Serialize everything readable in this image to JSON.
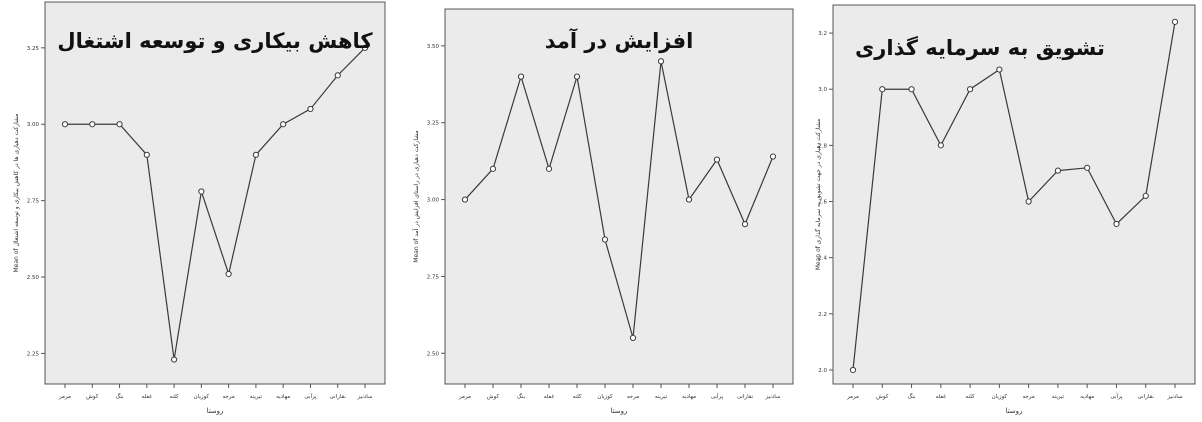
{
  "chart_data": [
    {
      "type": "line",
      "title": "کاهش بیکاری و توسعه اشتغال",
      "xlabel": "روستا",
      "ylabel": "Mean of مشارکت دهیاری ها در کاهش بیکاری و توسعه اشتغال",
      "categories": [
        "مرمر",
        "کوش",
        "بنگ",
        "غفله",
        "کلنه",
        "کوزیان",
        "مرخه",
        "تیرینه",
        "مهادیه",
        "پرآبی",
        "نقارانی",
        "سادنیز"
      ],
      "yticks": [
        "2.25",
        "2.50",
        "2.75",
        "3.00",
        "3.25"
      ],
      "ylim": [
        2.15,
        3.4
      ],
      "values": [
        3.0,
        3.0,
        3.0,
        2.9,
        2.23,
        2.78,
        2.51,
        2.9,
        3.0,
        3.05,
        3.16,
        3.25
      ]
    },
    {
      "type": "line",
      "title": "افزایش در آمد",
      "xlabel": "روستا",
      "ylabel": "Mean of مشارکت دهیاری در راستای افزایش در آمد",
      "categories": [
        "مرمر",
        "کوش",
        "بنگ",
        "غفله",
        "کلنه",
        "کوزیان",
        "مرخه",
        "تیرینه",
        "مهادیه",
        "پرآبی",
        "نقارانی",
        "سادنیز"
      ],
      "yticks": [
        "2.50",
        "2.75",
        "3.00",
        "3.25",
        "3.50"
      ],
      "ylim": [
        2.4,
        3.62
      ],
      "values": [
        3.0,
        3.1,
        3.4,
        3.1,
        3.4,
        2.87,
        2.55,
        3.45,
        3.0,
        3.13,
        2.92,
        3.14
      ]
    },
    {
      "type": "line",
      "title": "تشویق به سرمایه گذاری",
      "xlabel": "روستا",
      "ylabel": "Mean of مشارکت دهیاری در جهت تشویق به سرمایه گذاری",
      "categories": [
        "مرمر",
        "کوش",
        "بنگ",
        "غفله",
        "کلنه",
        "کوزیان",
        "مرخه",
        "تیرینه",
        "مهادیه",
        "پرآبی",
        "نقارانی",
        "سادنیز"
      ],
      "yticks": [
        "2.0",
        "2.2",
        "2.4",
        "2.6",
        "2.8",
        "3.0",
        "3.2"
      ],
      "ylim": [
        1.95,
        3.3
      ],
      "values": [
        2.0,
        3.0,
        3.0,
        2.8,
        3.0,
        3.07,
        2.6,
        2.71,
        2.72,
        2.52,
        2.62,
        3.24
      ]
    }
  ]
}
